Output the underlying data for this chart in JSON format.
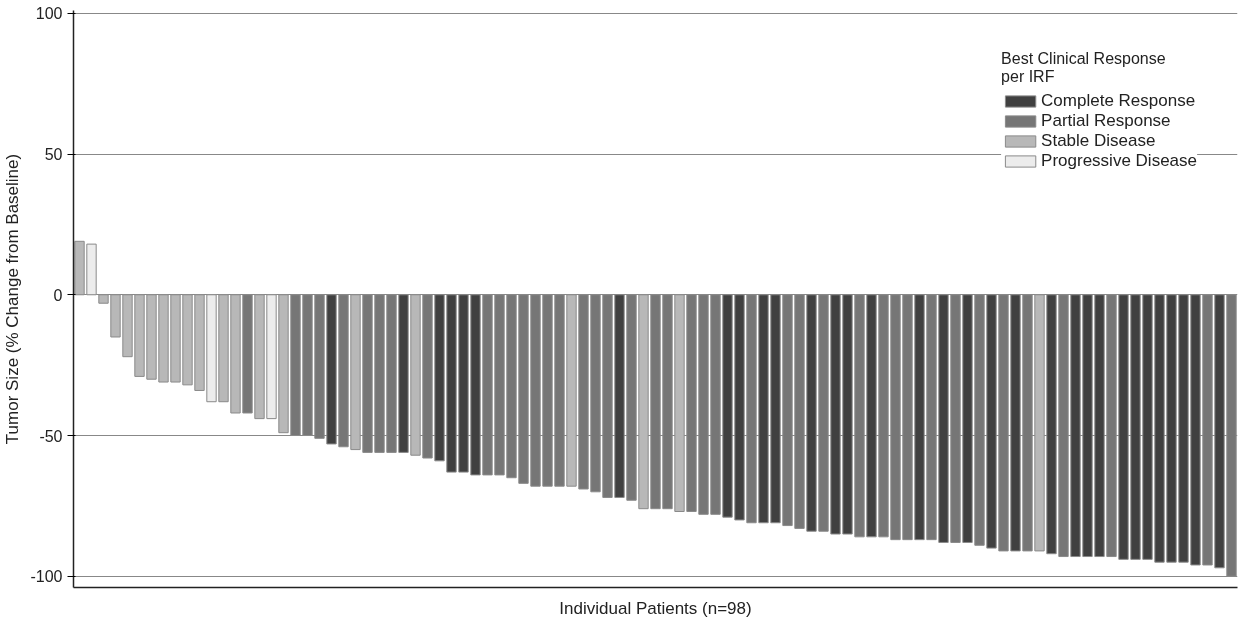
{
  "chart_data": {
    "type": "bar",
    "xlabel": "Individual Patients (n=98)",
    "ylabel": "Tumor Size (% Change from Baseline)",
    "legend_title": "Best Clinical Response\nper IRF",
    "legend": "top right",
    "grid": "y",
    "tick_labels": "y",
    "ylim": [
      -104,
      101
    ],
    "yticks": [
      -100,
      -50,
      0,
      50,
      100
    ],
    "categories": [
      null,
      null,
      null,
      null,
      null,
      null,
      null,
      null,
      null,
      null,
      null,
      null,
      null,
      null,
      null,
      null,
      null,
      null,
      null,
      null,
      null,
      null,
      null,
      null,
      null,
      null,
      null,
      null,
      null,
      null,
      null,
      null,
      null,
      null,
      null,
      null,
      null,
      null,
      null,
      null,
      null,
      null,
      null,
      null,
      null,
      null,
      null,
      null,
      null,
      null,
      null,
      null,
      null,
      null,
      null,
      null,
      null,
      null,
      null,
      null,
      null,
      null,
      null,
      null,
      null,
      null,
      null,
      null,
      null,
      null,
      null,
      null,
      null,
      null,
      null,
      null,
      null,
      null,
      null,
      null,
      null,
      null,
      null,
      null,
      null,
      null,
      null,
      null,
      null,
      null,
      null,
      null,
      null,
      null,
      null,
      null,
      null
    ],
    "series": [
      {
        "name": "Complete Response",
        "color": "#404040",
        "values": [
          null,
          null,
          null,
          null,
          null,
          null,
          null,
          null,
          null,
          null,
          null,
          null,
          null,
          null,
          null,
          null,
          null,
          null,
          null,
          null,
          null,
          -53,
          null,
          null,
          null,
          null,
          null,
          -56,
          null,
          null,
          -59,
          -63,
          -63,
          -64,
          null,
          null,
          null,
          null,
          null,
          null,
          null,
          null,
          null,
          null,
          null,
          -72,
          null,
          null,
          null,
          null,
          null,
          null,
          null,
          null,
          -79,
          -80,
          null,
          -81,
          -81,
          null,
          null,
          -84,
          null,
          -85,
          -85,
          null,
          -86,
          null,
          null,
          null,
          -87,
          null,
          -88,
          null,
          -88,
          null,
          -90,
          null,
          -91,
          null,
          null,
          -92,
          null,
          -93,
          -93,
          -93,
          null,
          -94,
          -94,
          -94,
          -95,
          -95,
          -95,
          -96,
          null,
          -97,
          null
        ]
      },
      {
        "name": "Partial Response",
        "color": "#767676",
        "values": [
          null,
          null,
          null,
          null,
          null,
          null,
          null,
          null,
          null,
          null,
          null,
          null,
          null,
          null,
          -42,
          null,
          null,
          null,
          -50,
          -50,
          -51,
          null,
          -54,
          null,
          -56,
          -56,
          -56,
          null,
          null,
          -58,
          null,
          null,
          null,
          null,
          -64,
          -64,
          -65,
          -67,
          -68,
          -68,
          -68,
          null,
          -69,
          -70,
          -72,
          null,
          -73,
          null,
          -76,
          -76,
          null,
          -77,
          -78,
          -78,
          null,
          null,
          -81,
          null,
          null,
          -82,
          -83,
          null,
          -84,
          null,
          null,
          -86,
          null,
          -86,
          -87,
          -87,
          null,
          -87,
          null,
          -88,
          null,
          -89,
          null,
          -91,
          null,
          -91,
          null,
          null,
          -93,
          null,
          null,
          null,
          -93,
          null,
          null,
          null,
          null,
          null,
          null,
          null,
          -96,
          null,
          -100
        ]
      },
      {
        "name": "Stable Disease",
        "color": "#b8b8b8",
        "values": [
          19,
          null,
          -3,
          -15,
          -22,
          -29,
          -30,
          -31,
          -31,
          -32,
          -34,
          null,
          -38,
          -42,
          null,
          -44,
          null,
          -49,
          null,
          null,
          null,
          null,
          null,
          -55,
          null,
          null,
          null,
          null,
          -57,
          null,
          null,
          null,
          null,
          null,
          null,
          null,
          null,
          null,
          null,
          null,
          null,
          -68,
          null,
          null,
          null,
          null,
          null,
          -76,
          null,
          null,
          -77,
          null,
          null,
          null,
          null,
          null,
          null,
          null,
          null,
          null,
          null,
          null,
          null,
          null,
          null,
          null,
          null,
          null,
          null,
          null,
          null,
          null,
          null,
          null,
          null,
          null,
          null,
          null,
          null,
          null,
          -91,
          null,
          null,
          null,
          null,
          null,
          null,
          null,
          null,
          null,
          null,
          null,
          null,
          null,
          null,
          null,
          null
        ]
      },
      {
        "name": "Progressive Disease",
        "color": "#ececec",
        "values": [
          null,
          18,
          null,
          null,
          null,
          null,
          null,
          null,
          null,
          null,
          null,
          -38,
          null,
          null,
          null,
          null,
          -44,
          null,
          null,
          null,
          null,
          null,
          null,
          null,
          null,
          null,
          null,
          null,
          null,
          null,
          null,
          null,
          null,
          null,
          null,
          null,
          null,
          null,
          null,
          null,
          null,
          null,
          null,
          null,
          null,
          null,
          null,
          null,
          null,
          null,
          null,
          null,
          null,
          null,
          null,
          null,
          null,
          null,
          null,
          null,
          null,
          null,
          null,
          null,
          null,
          null,
          null,
          null,
          null,
          null,
          null,
          null,
          null,
          null,
          null,
          null,
          null,
          null,
          null,
          null,
          null,
          null,
          null,
          null,
          null,
          null,
          null,
          null,
          null,
          null,
          null,
          null,
          null,
          null,
          null,
          null,
          null
        ]
      }
    ]
  }
}
